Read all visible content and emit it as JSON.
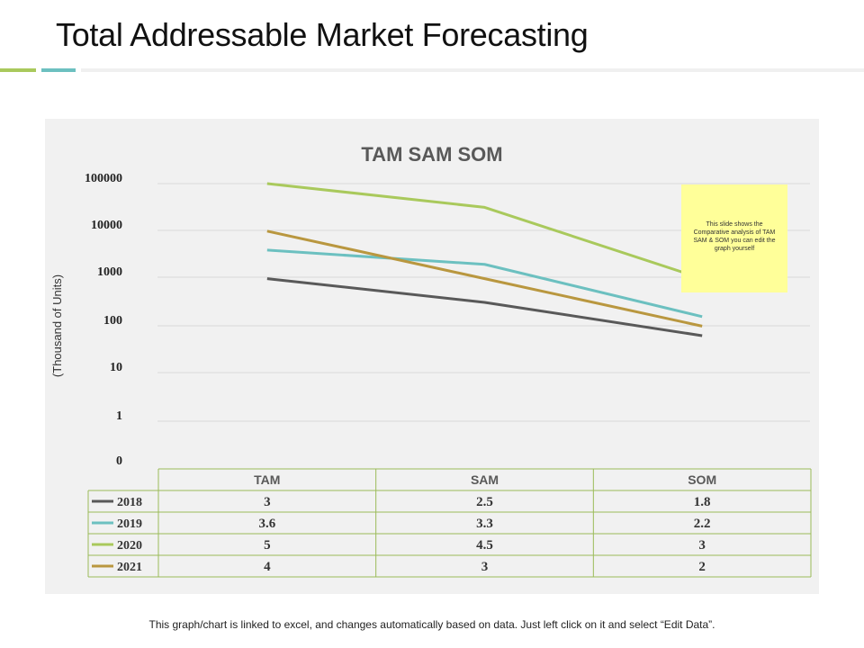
{
  "page": {
    "title": "Total Addressable Market Forecasting",
    "footer": "This graph/chart is linked to excel, and changes automatically based on data. Just left click on it and select “Edit Data”.",
    "note": "This slide shows the Comparative analysis of TAM SAM & SOM you can edit the graph yourself"
  },
  "colors": {
    "accent_green": "#a9c95c",
    "accent_teal": "#6cc0c0",
    "table_border": "#9bbb59"
  },
  "chart_data": {
    "type": "line",
    "title": "TAM SAM SOM",
    "ylabel": "(Thousand of Units)",
    "xlabel": "",
    "y_scale": "log",
    "y_ticks": [
      0,
      1,
      10,
      100,
      1000,
      10000,
      100000
    ],
    "y_tick_labels": [
      "0",
      "1",
      "10",
      "100",
      "1000",
      "10000",
      "100000"
    ],
    "categories": [
      "TAM",
      "SAM",
      "SOM"
    ],
    "grid": true,
    "legend": "data-table",
    "series": [
      {
        "name": "2018",
        "color": "#595959",
        "values": [
          3,
          2.5,
          1.8
        ]
      },
      {
        "name": "2019",
        "color": "#6cc0c0",
        "values": [
          3.6,
          3.3,
          2.2
        ]
      },
      {
        "name": "2020",
        "color": "#a9c95c",
        "values": [
          5,
          4.5,
          3
        ]
      },
      {
        "name": "2021",
        "color": "#b9973f",
        "values": [
          4,
          3,
          2
        ]
      }
    ]
  }
}
